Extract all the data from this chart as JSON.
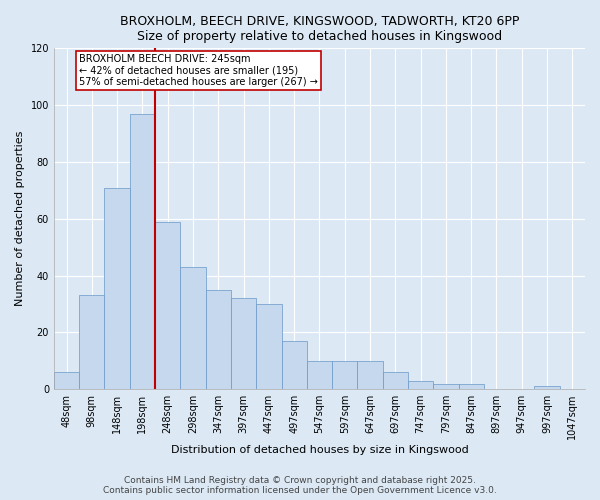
{
  "title1": "BROXHOLM, BEECH DRIVE, KINGSWOOD, TADWORTH, KT20 6PP",
  "title2": "Size of property relative to detached houses in Kingswood",
  "xlabel": "Distribution of detached houses by size in Kingswood",
  "ylabel": "Number of detached properties",
  "categories": [
    "48sqm",
    "98sqm",
    "148sqm",
    "198sqm",
    "248sqm",
    "298sqm",
    "347sqm",
    "397sqm",
    "447sqm",
    "497sqm",
    "547sqm",
    "597sqm",
    "647sqm",
    "697sqm",
    "747sqm",
    "797sqm",
    "847sqm",
    "897sqm",
    "947sqm",
    "997sqm",
    "1047sqm"
  ],
  "values": [
    6,
    33,
    71,
    97,
    59,
    43,
    35,
    32,
    30,
    17,
    10,
    10,
    10,
    6,
    3,
    2,
    2,
    0,
    0,
    1,
    0
  ],
  "bar_color": "#c5d8ed",
  "bar_edge_color": "#6898c8",
  "vline_color": "#c00000",
  "vline_position": 4,
  "annotation_text": "BROXHOLM BEECH DRIVE: 245sqm\n← 42% of detached houses are smaller (195)\n57% of semi-detached houses are larger (267) →",
  "annotation_box_color": "#ffffff",
  "annotation_box_edge_color": "#c00000",
  "ylim": [
    0,
    120
  ],
  "yticks": [
    0,
    20,
    40,
    60,
    80,
    100,
    120
  ],
  "footer1": "Contains HM Land Registry data © Crown copyright and database right 2025.",
  "footer2": "Contains public sector information licensed under the Open Government Licence v3.0.",
  "bg_color": "#dce9f5",
  "plot_bg_color": "#dce9f5",
  "grid_color": "#ffffff",
  "title_fontsize": 9,
  "xlabel_fontsize": 8,
  "ylabel_fontsize": 8,
  "tick_fontsize": 7,
  "annotation_fontsize": 7,
  "footer_fontsize": 6.5
}
